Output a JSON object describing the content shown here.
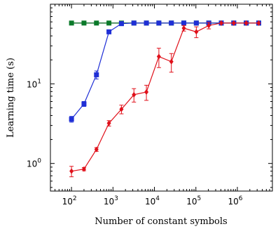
{
  "chart_data": {
    "type": "line",
    "xlabel": "Number of constant symbols",
    "ylabel": "Learning time (s)",
    "x_scale": "log",
    "y_scale": "log",
    "xlim": [
      31,
      7000000
    ],
    "ylim": [
      0.45,
      100
    ],
    "grid": false,
    "x_ticks": [
      {
        "value": 100,
        "base": "10",
        "exp": "2"
      },
      {
        "value": 1000,
        "base": "10",
        "exp": "3"
      },
      {
        "value": 10000,
        "base": "10",
        "exp": "4"
      },
      {
        "value": 100000,
        "base": "10",
        "exp": "5"
      },
      {
        "value": 1000000,
        "base": "10",
        "exp": "6"
      }
    ],
    "y_ticks": [
      {
        "value": 1,
        "base": "10",
        "exp": "0"
      },
      {
        "value": 10,
        "base": "10",
        "exp": "1"
      }
    ],
    "series": [
      {
        "color": "#111111",
        "marker": "circle",
        "points": [
          {
            "x": 100,
            "y": 58
          },
          {
            "x": 200,
            "y": 58
          },
          {
            "x": 400,
            "y": 58
          },
          {
            "x": 800,
            "y": 58
          },
          {
            "x": 1600,
            "y": 58
          },
          {
            "x": 3200,
            "y": 58
          },
          {
            "x": 6400,
            "y": 58
          },
          {
            "x": 12800,
            "y": 58
          },
          {
            "x": 25600,
            "y": 58
          },
          {
            "x": 51200,
            "y": 58
          },
          {
            "x": 102400,
            "y": 58
          },
          {
            "x": 204800,
            "y": 58
          },
          {
            "x": 409600,
            "y": 58
          },
          {
            "x": 819200,
            "y": 58
          },
          {
            "x": 1638400,
            "y": 58
          },
          {
            "x": 3276800,
            "y": 58
          }
        ]
      },
      {
        "color": "#0b7a2a",
        "marker": "square",
        "points": [
          {
            "x": 100,
            "y": 58
          },
          {
            "x": 200,
            "y": 58
          },
          {
            "x": 400,
            "y": 58
          },
          {
            "x": 800,
            "y": 58
          },
          {
            "x": 1600,
            "y": 58
          },
          {
            "x": 3200,
            "y": 58
          },
          {
            "x": 6400,
            "y": 58
          },
          {
            "x": 12800,
            "y": 58
          },
          {
            "x": 25600,
            "y": 58
          },
          {
            "x": 51200,
            "y": 58
          },
          {
            "x": 102400,
            "y": 58
          },
          {
            "x": 204800,
            "y": 58
          },
          {
            "x": 409600,
            "y": 58
          },
          {
            "x": 819200,
            "y": 58
          },
          {
            "x": 1638400,
            "y": 58
          },
          {
            "x": 3276800,
            "y": 58
          }
        ]
      },
      {
        "color": "#1f2fd6",
        "marker": "square",
        "points": [
          {
            "x": 100,
            "y": 3.6,
            "err": 0.3
          },
          {
            "x": 200,
            "y": 5.6,
            "err": 0.4
          },
          {
            "x": 400,
            "y": 13,
            "err": 1.5
          },
          {
            "x": 800,
            "y": 45,
            "err": 2.5
          },
          {
            "x": 1600,
            "y": 57
          },
          {
            "x": 3200,
            "y": 58
          },
          {
            "x": 6400,
            "y": 58
          },
          {
            "x": 12800,
            "y": 58
          },
          {
            "x": 25600,
            "y": 58
          },
          {
            "x": 51200,
            "y": 58
          },
          {
            "x": 102400,
            "y": 58
          },
          {
            "x": 204800,
            "y": 58
          },
          {
            "x": 409600,
            "y": 58
          },
          {
            "x": 819200,
            "y": 58
          },
          {
            "x": 1638400,
            "y": 58
          },
          {
            "x": 3276800,
            "y": 58
          }
        ]
      },
      {
        "color": "#e0101a",
        "marker": "diamond",
        "points": [
          {
            "x": 100,
            "y": 0.8,
            "err": 0.12
          },
          {
            "x": 200,
            "y": 0.85,
            "err": 0.04
          },
          {
            "x": 400,
            "y": 1.5,
            "err": 0.08
          },
          {
            "x": 800,
            "y": 3.2,
            "err": 0.25
          },
          {
            "x": 1600,
            "y": 4.8,
            "err": 0.6
          },
          {
            "x": 3200,
            "y": 7.3,
            "err": 1.4
          },
          {
            "x": 6400,
            "y": 7.9,
            "err": 1.7
          },
          {
            "x": 12800,
            "y": 22,
            "err": 6
          },
          {
            "x": 25600,
            "y": 19,
            "err": 5
          },
          {
            "x": 51200,
            "y": 50,
            "err": 4
          },
          {
            "x": 102400,
            "y": 45,
            "err": 7
          },
          {
            "x": 204800,
            "y": 54,
            "err": 5
          },
          {
            "x": 409600,
            "y": 58
          },
          {
            "x": 819200,
            "y": 58
          },
          {
            "x": 1638400,
            "y": 58
          },
          {
            "x": 3276800,
            "y": 58
          }
        ]
      }
    ]
  }
}
